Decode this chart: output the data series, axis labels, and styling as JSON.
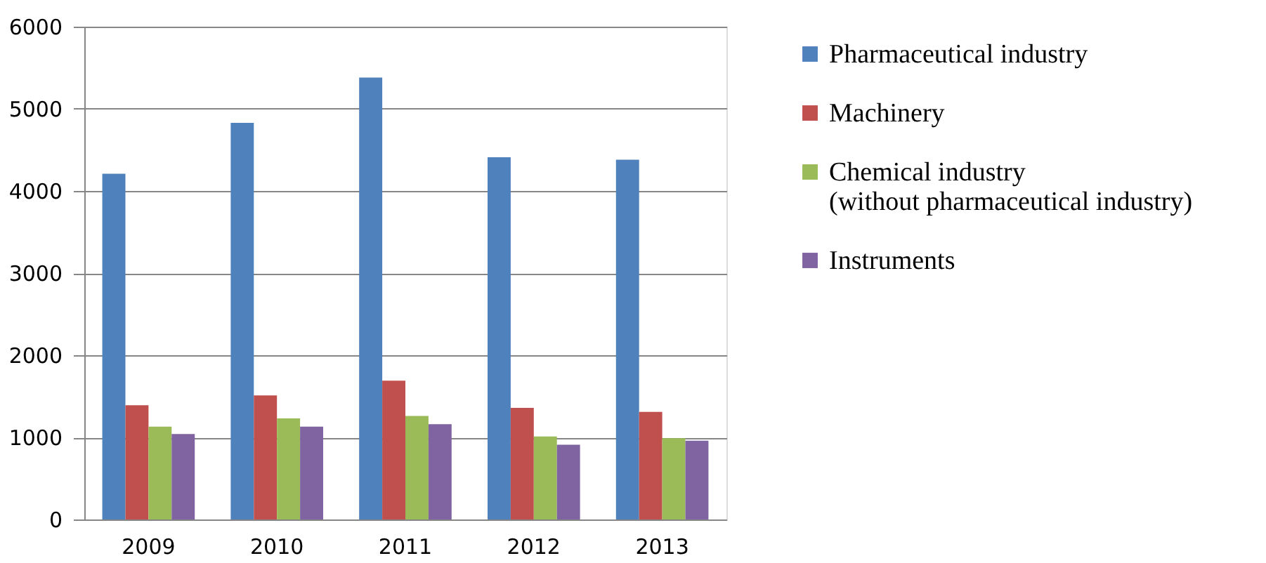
{
  "chart_data": {
    "type": "bar",
    "categories": [
      "2009",
      "2010",
      "2011",
      "2012",
      "2013"
    ],
    "series": [
      {
        "name": "Pharmaceutical industry",
        "color": "#4f81bd",
        "values": [
          4210,
          4830,
          5380,
          4410,
          4380
        ]
      },
      {
        "name": "Machinery",
        "color": "#c0504d",
        "values": [
          1390,
          1510,
          1690,
          1360,
          1310
        ]
      },
      {
        "name": "Chemical industry (without pharmaceutical industry)",
        "color": "#9bbb59",
        "values": [
          1130,
          1230,
          1260,
          1010,
          990
        ]
      },
      {
        "name": "Instruments",
        "color": "#8064a2",
        "values": [
          1040,
          1130,
          1160,
          910,
          960
        ]
      }
    ],
    "ylim": [
      0,
      6000
    ],
    "yticks": [
      0,
      1000,
      2000,
      3000,
      4000,
      5000,
      6000
    ],
    "grid": "y",
    "legend": "right"
  }
}
